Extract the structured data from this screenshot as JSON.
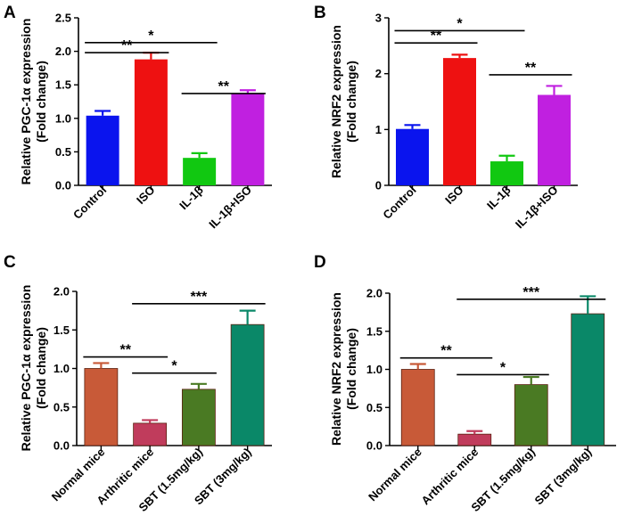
{
  "chart_data": [
    {
      "type": "bar",
      "panel": "A",
      "title": "",
      "xlabel": "",
      "ylabel": [
        "Relative PGC-1α expression",
        "(Fold change)"
      ],
      "ylim": [
        0,
        2.5
      ],
      "yticks": [
        "0.0",
        "0.5",
        "1.0",
        "1.5",
        "2.0",
        "2.5"
      ],
      "categories": [
        "Control",
        "ISO",
        "IL-1β",
        "IL-1β+ISO"
      ],
      "values": [
        1.04,
        1.88,
        0.41,
        1.37
      ],
      "errors": [
        0.07,
        0.1,
        0.07,
        0.05
      ],
      "colors": [
        "#0a14ee",
        "#ee1111",
        "#11c811",
        "#c020e0"
      ],
      "significance": [
        {
          "from": 0,
          "to": 1,
          "y": 1.98,
          "label": "**"
        },
        {
          "from": 0,
          "to": 2,
          "y": 2.13,
          "label": "*"
        },
        {
          "from": 2,
          "to": 3,
          "y": 1.37,
          "label": "**"
        }
      ]
    },
    {
      "type": "bar",
      "panel": "B",
      "title": "",
      "xlabel": "",
      "ylabel": [
        "Relative NRF2 expression",
        "(Fold change)"
      ],
      "ylim": [
        0,
        3
      ],
      "yticks": [
        "0",
        "1",
        "2",
        "3"
      ],
      "categories": [
        "Control",
        "ISO",
        "IL-1β",
        "IL-1β+ISO"
      ],
      "values": [
        1.01,
        2.28,
        0.43,
        1.62
      ],
      "errors": [
        0.07,
        0.06,
        0.1,
        0.16
      ],
      "colors": [
        "#0a14ee",
        "#ee1111",
        "#11c811",
        "#c020e0"
      ],
      "significance": [
        {
          "from": 0,
          "to": 1,
          "y": 2.55,
          "label": "**"
        },
        {
          "from": 0,
          "to": 2,
          "y": 2.77,
          "label": "*"
        },
        {
          "from": 2,
          "to": 3,
          "y": 1.98,
          "label": "**"
        }
      ]
    },
    {
      "type": "bar",
      "panel": "C",
      "title": "",
      "xlabel": "",
      "ylabel": [
        "Relative PGC-1α expression",
        "(Fold change)"
      ],
      "ylim": [
        0,
        2.0
      ],
      "yticks": [
        "0.0",
        "0.5",
        "1.0",
        "1.5",
        "2.0"
      ],
      "categories": [
        "Normal mice",
        "Arthritic mice",
        "SBT (1.5mg/kg)",
        "SBT (3mg/kg)"
      ],
      "values": [
        1.0,
        0.29,
        0.73,
        1.57
      ],
      "errors": [
        0.07,
        0.04,
        0.07,
        0.18
      ],
      "colors": [
        "#c85a38",
        "#c03c5c",
        "#4a7a23",
        "#0a8868"
      ],
      "significance": [
        {
          "from": 0,
          "to": 1,
          "y": 1.15,
          "label": "**"
        },
        {
          "from": 1,
          "to": 2,
          "y": 0.94,
          "label": "*"
        },
        {
          "from": 1,
          "to": 3,
          "y": 1.84,
          "label": "***"
        }
      ]
    },
    {
      "type": "bar",
      "panel": "D",
      "title": "",
      "xlabel": "",
      "ylabel": [
        "Relative NRF2 expression",
        "(Fold change)"
      ],
      "ylim": [
        0,
        2.0
      ],
      "yticks": [
        "0.0",
        "0.5",
        "1.0",
        "1.5",
        "2.0"
      ],
      "categories": [
        "Normal mice",
        "Arthritic mice",
        "SBT (1.5mg/kg)",
        "SBT (3mg/kg)"
      ],
      "values": [
        1.0,
        0.15,
        0.8,
        1.73
      ],
      "errors": [
        0.07,
        0.04,
        0.1,
        0.23
      ],
      "colors": [
        "#c85a38",
        "#c03c5c",
        "#4a7a23",
        "#0a8868"
      ],
      "significance": [
        {
          "from": 0,
          "to": 1,
          "y": 1.15,
          "label": "**"
        },
        {
          "from": 1,
          "to": 2,
          "y": 0.93,
          "label": "*"
        },
        {
          "from": 1,
          "to": 3,
          "y": 1.92,
          "label": "***"
        }
      ]
    }
  ]
}
